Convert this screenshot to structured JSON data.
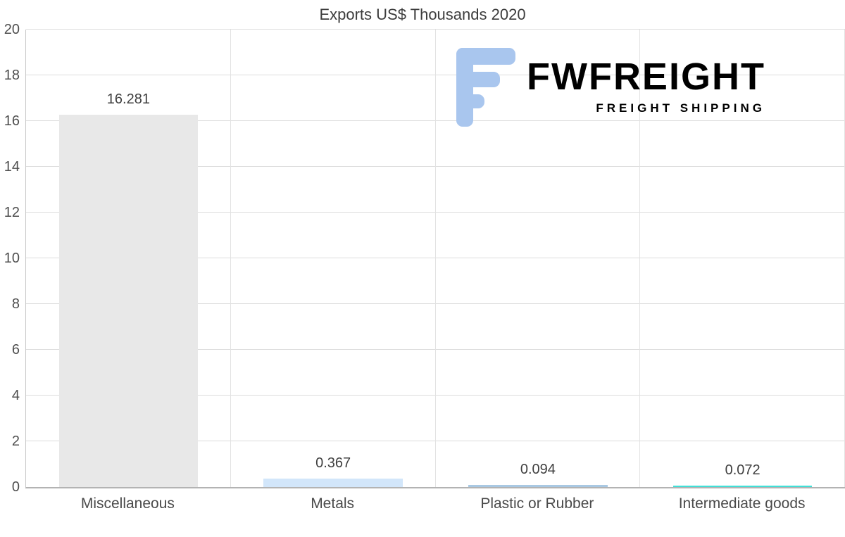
{
  "chart_data": {
    "type": "bar",
    "title": "Exports US$ Thousands 2020",
    "categories": [
      "Miscellaneous",
      "Metals",
      "Plastic or Rubber",
      "Intermediate goods"
    ],
    "values": [
      16.281,
      0.367,
      0.094,
      0.072
    ],
    "value_labels": [
      "16.281",
      "0.367",
      "0.094",
      "0.072"
    ],
    "bar_colors": [
      "#e8e8e8",
      "#d2e6fa",
      "#a9c8e2",
      "#40e0d8"
    ],
    "xlabel": "",
    "ylabel": "",
    "ylim": [
      0,
      20
    ],
    "ytick_step": 2,
    "grid": "on",
    "legend": "none"
  },
  "watermark": {
    "brand": "FWFREIGHT",
    "tagline": "FREIGHT SHIPPING",
    "color": "#a9c6ee"
  }
}
